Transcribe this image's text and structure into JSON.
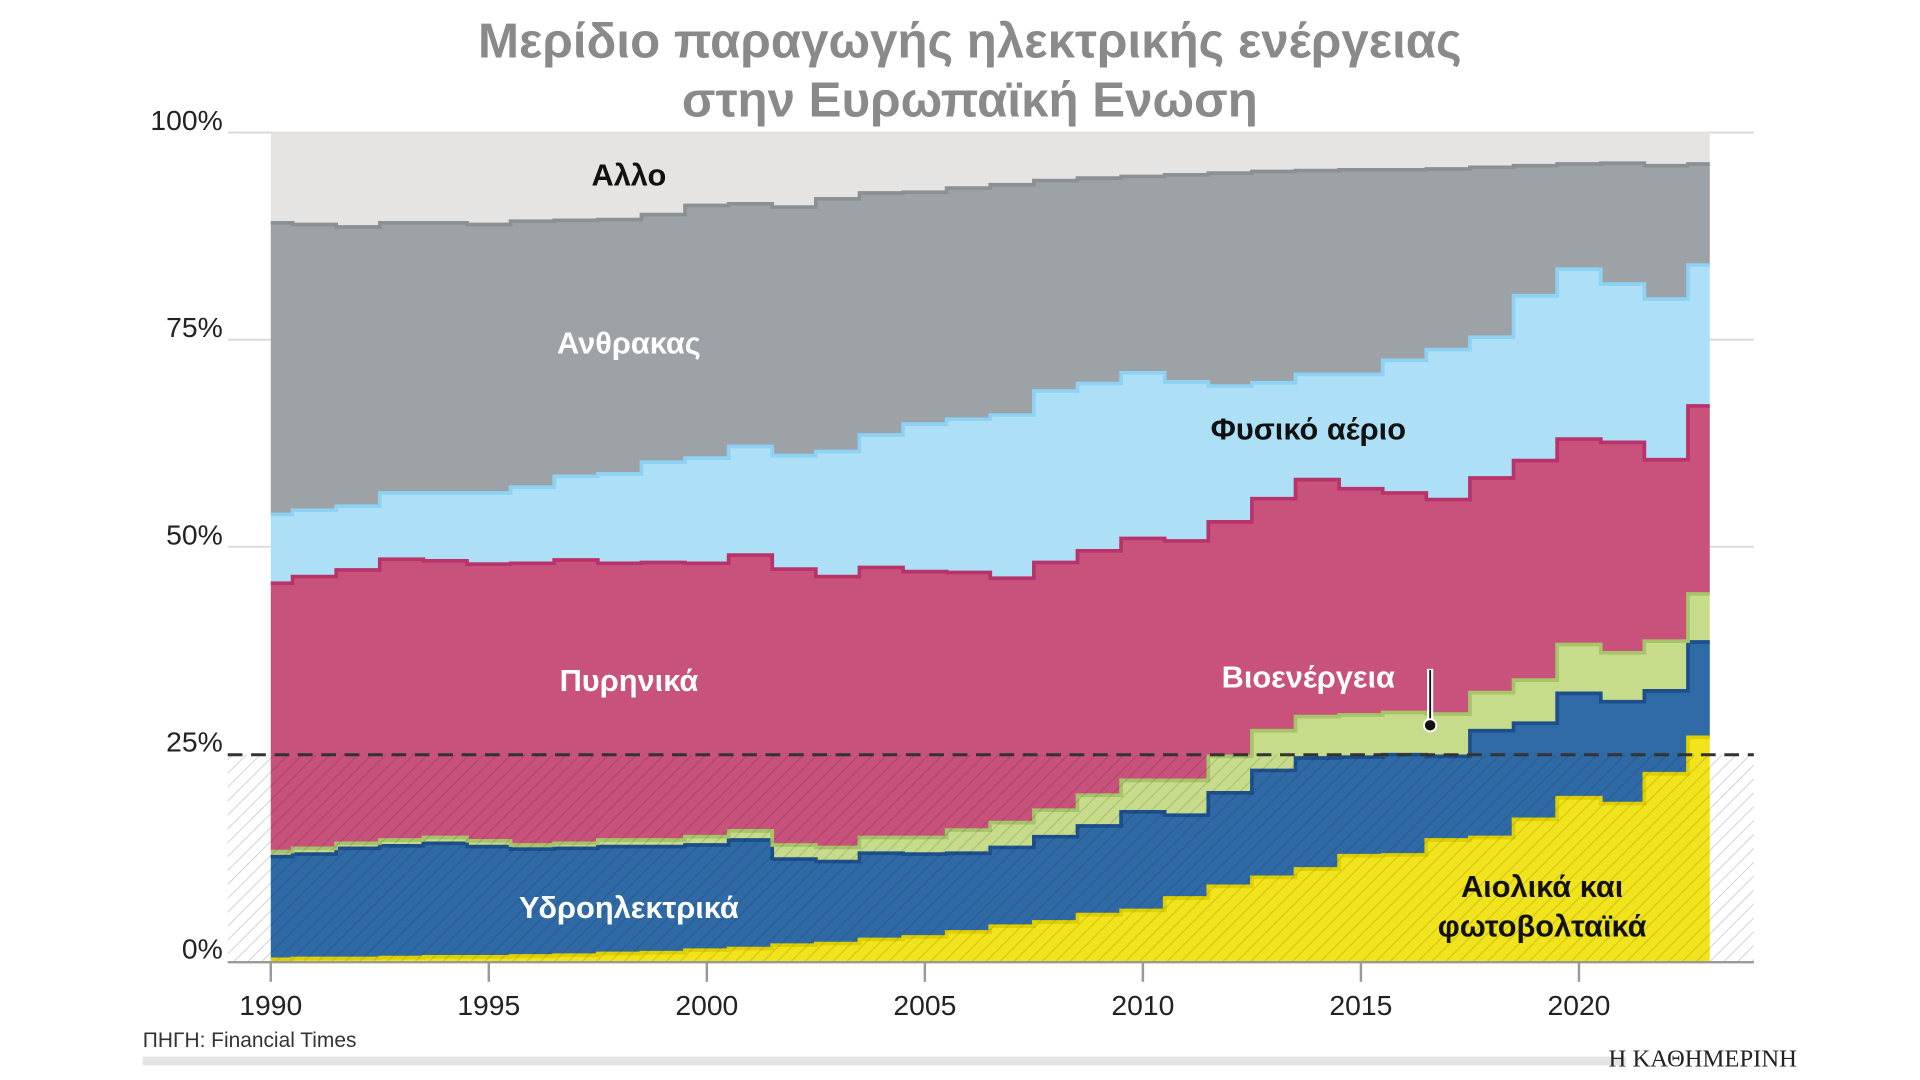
{
  "chart_data": {
    "type": "area",
    "stacked": true,
    "step": true,
    "title_line1": "Μερίδιο παραγωγής ηλεκτρικής ενέργειας",
    "title_line2": "στην Ευρωπαϊκή Ενωση",
    "xlabel": "",
    "ylabel": "",
    "ylim": [
      0,
      100
    ],
    "xlim": [
      1990,
      2023
    ],
    "y_ticks": [
      "0%",
      "25%",
      "50%",
      "75%",
      "100%"
    ],
    "x_ticks": [
      "1990",
      "1995",
      "2000",
      "2005",
      "2010",
      "2015",
      "2020"
    ],
    "reference_line": {
      "value": 25,
      "style": "dashed"
    },
    "values_are_cumulative": true,
    "x": [
      1990,
      1991,
      1992,
      1993,
      1994,
      1995,
      1996,
      1997,
      1998,
      1999,
      2000,
      2001,
      2002,
      2003,
      2004,
      2005,
      2006,
      2007,
      2008,
      2009,
      2010,
      2011,
      2012,
      2013,
      2014,
      2015,
      2016,
      2017,
      2018,
      2019,
      2020,
      2021,
      2022,
      2023
    ],
    "series": [
      {
        "name": "Αιολικά και φωτοβολταϊκά",
        "color": "#f2e41c",
        "stroke": "#e0d000",
        "values": [
          0.2,
          0.3,
          0.3,
          0.4,
          0.5,
          0.5,
          0.6,
          0.7,
          0.9,
          1.0,
          1.3,
          1.5,
          1.9,
          2.1,
          2.6,
          2.9,
          3.5,
          4.2,
          4.7,
          5.6,
          6.1,
          7.6,
          9.0,
          10.1,
          11.1,
          12.7,
          12.8,
          14.6,
          14.9,
          17.1,
          19.7,
          19.0,
          22.6,
          27.0
        ]
      },
      {
        "name": "Υδροηλεκτρικά",
        "color": "#2f6aa6",
        "stroke": "#1d4f8c",
        "values": [
          12.6,
          12.9,
          13.6,
          13.9,
          14.2,
          13.8,
          13.5,
          13.6,
          13.8,
          13.8,
          14.0,
          14.6,
          12.3,
          12.0,
          13.0,
          12.9,
          13.0,
          13.7,
          15.0,
          16.3,
          18.0,
          17.6,
          20.3,
          23.0,
          24.5,
          24.6,
          24.9,
          24.7,
          27.8,
          28.7,
          32.3,
          31.3,
          32.6,
          38.5
        ]
      },
      {
        "name": "Βιοενέργεια",
        "color": "#c6dc8b",
        "stroke": "#a6c468",
        "values": [
          13.2,
          13.6,
          14.2,
          14.6,
          14.9,
          14.5,
          14.0,
          14.2,
          14.6,
          14.6,
          15.0,
          15.7,
          14.0,
          13.7,
          14.9,
          14.9,
          15.8,
          16.7,
          18.2,
          20.0,
          21.8,
          21.8,
          24.7,
          27.8,
          29.5,
          29.7,
          30.0,
          29.8,
          32.4,
          33.9,
          38.2,
          37.2,
          38.6,
          44.3
        ]
      },
      {
        "name": "Πυρηνικά",
        "color": "#c8527b",
        "stroke": "#b8336a",
        "values": [
          45.6,
          46.4,
          47.2,
          48.5,
          48.3,
          47.9,
          48.0,
          48.4,
          48.0,
          48.1,
          48.0,
          49.0,
          47.3,
          46.4,
          47.5,
          47.0,
          46.9,
          46.2,
          48.1,
          49.5,
          51.0,
          50.7,
          53.0,
          55.8,
          58.1,
          57.0,
          56.5,
          55.7,
          58.3,
          60.4,
          63.0,
          62.6,
          60.5,
          67.0
        ]
      },
      {
        "name": "Φυσικό αέριο",
        "color": "#addff7",
        "stroke": "#8dd2f3",
        "values": [
          53.9,
          54.4,
          54.9,
          56.5,
          56.5,
          56.5,
          57.2,
          58.5,
          58.8,
          60.2,
          60.7,
          62.1,
          61.0,
          61.5,
          63.5,
          64.8,
          65.4,
          65.9,
          68.8,
          69.7,
          71.0,
          69.9,
          69.4,
          69.8,
          70.8,
          70.8,
          72.5,
          73.8,
          75.3,
          80.3,
          83.5,
          81.7,
          79.9,
          84.0
        ]
      },
      {
        "name": "Ανθρακας",
        "color": "#9da2a7",
        "stroke": "#8b9095",
        "values": [
          89.1,
          88.9,
          88.6,
          89.1,
          89.1,
          88.9,
          89.3,
          89.4,
          89.5,
          90.1,
          91.2,
          91.4,
          91.0,
          92.0,
          92.7,
          92.8,
          93.3,
          93.7,
          94.2,
          94.5,
          94.7,
          94.9,
          95.1,
          95.3,
          95.4,
          95.5,
          95.5,
          95.6,
          95.8,
          96.0,
          96.2,
          96.3,
          96.0,
          96.2
        ]
      },
      {
        "name": "Αλλο",
        "color": "#e6e4e2",
        "stroke": "#e6e4e2",
        "values": [
          100,
          100,
          100,
          100,
          100,
          100,
          100,
          100,
          100,
          100,
          100,
          100,
          100,
          100,
          100,
          100,
          100,
          100,
          100,
          100,
          100,
          100,
          100,
          100,
          100,
          100,
          100,
          100,
          100,
          100,
          100,
          100,
          100,
          100
        ]
      }
    ],
    "annotations": [
      {
        "text": "Αλλο",
        "color": "#111111"
      },
      {
        "text": "Ανθρακας",
        "color": "#ffffff"
      },
      {
        "text": "Φυσικό αέριο",
        "color": "#111111"
      },
      {
        "text": "Πυρηνικά",
        "color": "#ffffff"
      },
      {
        "text": "Βιοενέργεια",
        "color": "#ffffff"
      },
      {
        "text": "Υδροηλεκτρικά",
        "color": "#ffffff"
      },
      {
        "text": "Αιολικά και",
        "color": "#111111"
      },
      {
        "text": "φωτοβολταϊκά",
        "color": "#111111"
      }
    ],
    "source": "ΠΗΓΗ: Financial Times",
    "brand": "Η ΚΑΘΗΜΕΡΙΝΗ"
  }
}
